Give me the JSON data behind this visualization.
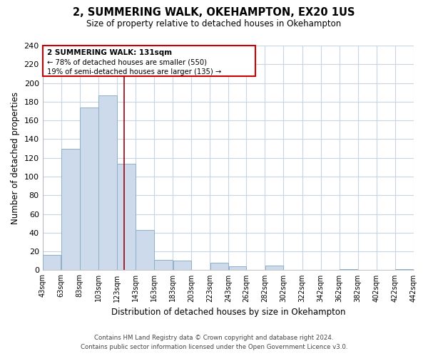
{
  "title": "2, SUMMERING WALK, OKEHAMPTON, EX20 1US",
  "subtitle": "Size of property relative to detached houses in Okehampton",
  "xlabel": "Distribution of detached houses by size in Okehampton",
  "ylabel": "Number of detached properties",
  "bar_color": "#ccdaeb",
  "bar_edge_color": "#8fafc8",
  "background_color": "#ffffff",
  "grid_color": "#c8d4e0",
  "vline_x": 131,
  "vline_color": "#99000d",
  "bin_edges": [
    43,
    63,
    83,
    103,
    123,
    143,
    163,
    183,
    203,
    223,
    243,
    262,
    282,
    302,
    322,
    342,
    362,
    382,
    402,
    422,
    442
  ],
  "bar_heights": [
    16,
    130,
    174,
    187,
    114,
    43,
    11,
    10,
    0,
    8,
    4,
    0,
    5,
    0,
    0,
    0,
    1,
    0,
    0,
    1
  ],
  "ylim": [
    0,
    240
  ],
  "yticks": [
    0,
    20,
    40,
    60,
    80,
    100,
    120,
    140,
    160,
    180,
    200,
    220,
    240
  ],
  "annotation_title": "2 SUMMERING WALK: 131sqm",
  "annotation_line1": "← 78% of detached houses are smaller (550)",
  "annotation_line2": "19% of semi-detached houses are larger (135) →",
  "annotation_box_color": "#ffffff",
  "annotation_box_edge": "#cc0000",
  "footer_line1": "Contains HM Land Registry data © Crown copyright and database right 2024.",
  "footer_line2": "Contains public sector information licensed under the Open Government Licence v3.0.",
  "tick_labels": [
    "43sqm",
    "63sqm",
    "83sqm",
    "103sqm",
    "123sqm",
    "143sqm",
    "163sqm",
    "183sqm",
    "203sqm",
    "223sqm",
    "243sqm",
    "262sqm",
    "282sqm",
    "302sqm",
    "322sqm",
    "342sqm",
    "362sqm",
    "382sqm",
    "402sqm",
    "422sqm",
    "442sqm"
  ]
}
